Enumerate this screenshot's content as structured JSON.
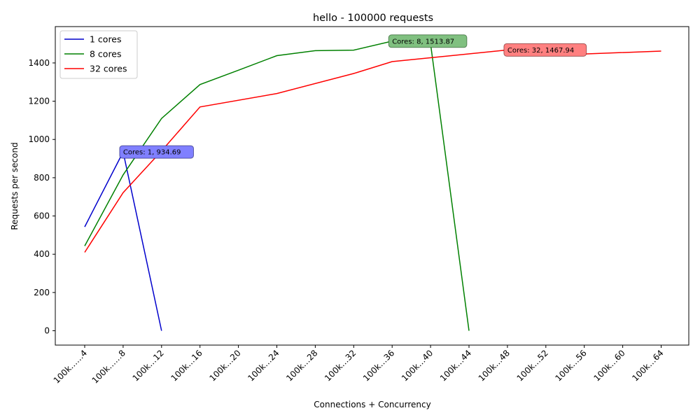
{
  "chart_data": {
    "type": "line",
    "title": "hello - 100000 requests",
    "xlabel": "Connections + Concurrency",
    "ylabel": "Requests per second",
    "categories": [
      "100k……4",
      "100k……8",
      "100k…12",
      "100k…16",
      "100k…20",
      "100k…24",
      "100k…28",
      "100k…32",
      "100k…36",
      "100k…40",
      "100k…44",
      "100k…48",
      "100k…52",
      "100k…56",
      "100k…60",
      "100k…64"
    ],
    "yticks": [
      0,
      200,
      400,
      600,
      800,
      1000,
      1200,
      1400
    ],
    "ylim": [
      -75,
      1590
    ],
    "grid": false,
    "legend_position": "top-left",
    "series": [
      {
        "name": "1 cores",
        "color": "#0000cc",
        "x": [
          0,
          1,
          2
        ],
        "values": [
          543,
          934.69,
          0
        ]
      },
      {
        "name": "8 cores",
        "color": "#008000",
        "x": [
          0,
          1,
          2,
          3,
          4,
          5,
          6,
          7,
          8,
          9,
          10
        ],
        "values": [
          443,
          815,
          1110,
          1287,
          1362,
          1438,
          1464,
          1467,
          1513.87,
          1500,
          0
        ]
      },
      {
        "name": "32 cores",
        "color": "#ff0000",
        "x": [
          0,
          1,
          2,
          3,
          5,
          7,
          8,
          11,
          13,
          15
        ],
        "values": [
          410,
          722,
          940,
          1170,
          1240,
          1345,
          1407,
          1467.94,
          1447,
          1462
        ]
      }
    ],
    "annotations": [
      {
        "text": "Cores: 1, 934.69",
        "x": 1,
        "y": 934.69,
        "color": "#8080ff",
        "edge": "#1a1a66"
      },
      {
        "text": "Cores: 8, 1513.87",
        "x": 8,
        "y": 1513.87,
        "color": "#80c080",
        "edge": "#1a4d1a"
      },
      {
        "text": "Cores: 32, 1467.94",
        "x": 11,
        "y": 1467.94,
        "color": "#ff8080",
        "edge": "#661a1a"
      }
    ]
  }
}
